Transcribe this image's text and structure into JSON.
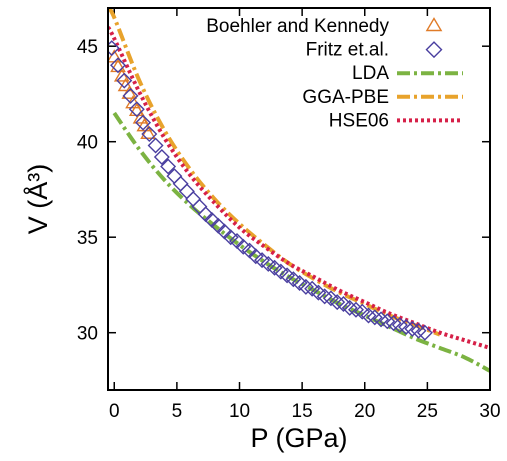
{
  "chart_data": {
    "type": "scatter",
    "xlabel": "P (GPa)",
    "ylabel": "V (Å³)",
    "xlim": [
      -0.5,
      30
    ],
    "ylim": [
      27,
      47
    ],
    "xticks": [
      0,
      5,
      10,
      15,
      20,
      25,
      30
    ],
    "yticks": [
      30,
      35,
      40,
      45
    ],
    "legend": "top-right",
    "grid": false,
    "series": [
      {
        "name": "Boehler and Kennedy",
        "kind": "points",
        "marker": "triangle",
        "color": "#e07b28",
        "x": [
          0,
          0.3,
          0.6,
          0.9,
          1.2,
          1.5,
          1.8,
          2.1,
          2.4,
          2.7
        ],
        "y": [
          44.4,
          43.9,
          43.4,
          42.9,
          42.5,
          42.0,
          41.6,
          41.2,
          40.8,
          40.4
        ]
      },
      {
        "name": "Fritz et.al.",
        "kind": "points",
        "marker": "diamond",
        "color": "#4a3fa0",
        "x": [
          -0.2,
          0.3,
          0.8,
          1.3,
          1.8,
          2.3,
          2.8,
          3.3,
          3.8,
          4.3,
          4.8,
          5.3,
          5.8,
          6.3,
          6.8,
          7.3,
          7.8,
          8.3,
          8.8,
          9.3,
          9.8,
          10.3,
          10.8,
          11.3,
          11.8,
          12.3,
          12.8,
          13.3,
          13.8,
          14.3,
          14.8,
          15.3,
          15.8,
          16.3,
          16.8,
          17.3,
          17.8,
          18.3,
          18.8,
          19.3,
          19.8,
          20.3,
          20.8,
          21.3,
          21.8,
          22.3,
          22.8,
          23.3,
          23.8,
          24.3,
          24.8
        ],
        "y": [
          44.9,
          44.0,
          43.2,
          42.4,
          41.7,
          41.0,
          40.4,
          39.8,
          39.2,
          38.7,
          38.2,
          37.8,
          37.4,
          37.0,
          36.6,
          36.2,
          35.9,
          35.6,
          35.3,
          35.0,
          34.8,
          34.5,
          34.3,
          34.0,
          33.8,
          33.6,
          33.4,
          33.2,
          33.0,
          32.8,
          32.6,
          32.4,
          32.3,
          32.1,
          31.9,
          31.8,
          31.6,
          31.5,
          31.3,
          31.2,
          31.1,
          30.9,
          30.8,
          30.7,
          30.6,
          30.5,
          30.4,
          30.3,
          30.2,
          30.1,
          30.0
        ]
      },
      {
        "name": "LDA",
        "kind": "line",
        "dash": "dashdot",
        "color": "#7cb342",
        "x": [
          0,
          2,
          4,
          6,
          8,
          10,
          12,
          14,
          16,
          18,
          20,
          22,
          24,
          26,
          28,
          30
        ],
        "y": [
          41.5,
          39.6,
          38.0,
          36.7,
          35.6,
          34.6,
          33.7,
          32.9,
          32.2,
          31.5,
          30.9,
          30.3,
          29.7,
          29.2,
          28.7,
          28.0
        ]
      },
      {
        "name": "GGA-PBE",
        "kind": "line",
        "dash": "dashdot",
        "color": "#e8a32c",
        "x": [
          -0.5,
          0,
          2,
          4,
          6,
          8,
          10,
          12,
          14,
          16,
          18,
          20,
          22,
          24,
          26
        ],
        "y": [
          47.0,
          46.5,
          43.2,
          40.6,
          38.6,
          37.0,
          35.7,
          34.6,
          33.6,
          32.8,
          32.1,
          31.5,
          30.9,
          30.4,
          29.9
        ]
      },
      {
        "name": "HSE06",
        "kind": "line",
        "dash": "dotted",
        "color": "#d62048",
        "x": [
          -0.5,
          0,
          2,
          4,
          6,
          8,
          10,
          12,
          14,
          16,
          18,
          20,
          22,
          24,
          26,
          28,
          30
        ],
        "y": [
          46.0,
          45.4,
          42.6,
          40.2,
          38.3,
          36.8,
          35.5,
          34.5,
          33.6,
          32.9,
          32.2,
          31.6,
          31.0,
          30.5,
          30.0,
          29.6,
          29.2
        ]
      }
    ]
  }
}
